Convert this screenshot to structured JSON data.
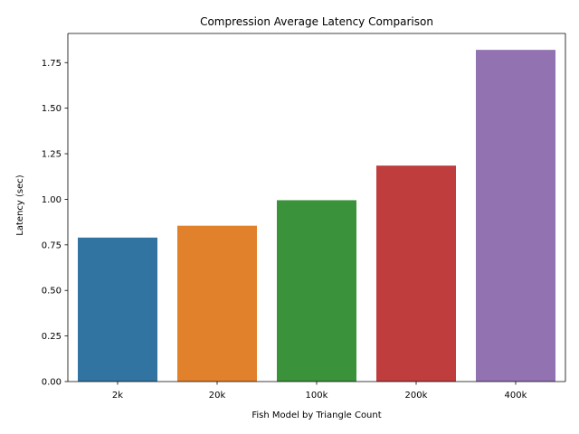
{
  "chart_data": {
    "type": "bar",
    "title": "Compression Average Latency Comparison",
    "xlabel": "Fish Model by Triangle Count",
    "ylabel": "Latency (sec)",
    "categories": [
      "2k",
      "20k",
      "100k",
      "200k",
      "400k"
    ],
    "values": [
      0.79,
      0.855,
      0.995,
      1.185,
      1.82
    ],
    "colors": [
      "#3274a1",
      "#e1812c",
      "#3a923a",
      "#c03d3e",
      "#9372b2"
    ],
    "ylim": [
      0,
      1.91
    ],
    "yticks": [
      "0.00",
      "0.25",
      "0.50",
      "0.75",
      "1.00",
      "1.25",
      "1.50",
      "1.75"
    ],
    "grid": false,
    "legend": "none"
  }
}
